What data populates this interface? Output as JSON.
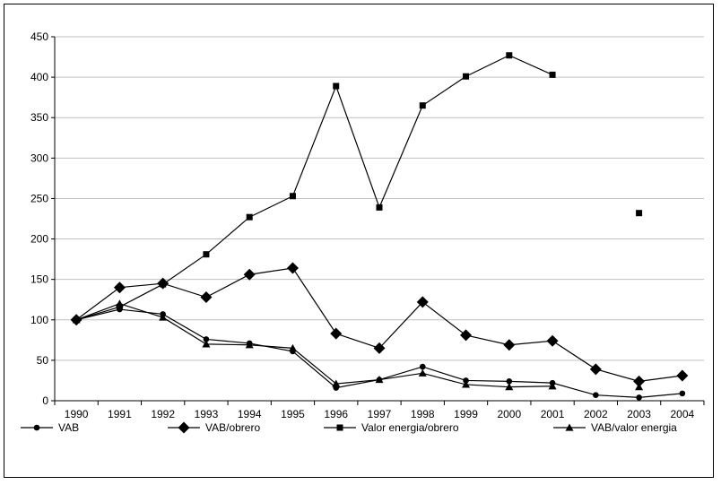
{
  "chart_data": {
    "type": "line",
    "title": "",
    "xlabel": "",
    "ylabel": "",
    "categories": [
      "1990",
      "1991",
      "1992",
      "1993",
      "1994",
      "1995",
      "1996",
      "1997",
      "1998",
      "1999",
      "2000",
      "2001",
      "2002",
      "2003",
      "2004"
    ],
    "ylim": [
      0,
      450
    ],
    "yticks": [
      "0",
      "50",
      "100",
      "150",
      "200",
      "250",
      "300",
      "350",
      "400",
      "450"
    ],
    "grid": "horizontal",
    "legend_position": "bottom",
    "series": [
      {
        "name": "VAB",
        "marker": "circle",
        "values": [
          100,
          113,
          107,
          76,
          71,
          61,
          16,
          26,
          42,
          25,
          24,
          22,
          7,
          4,
          9
        ]
      },
      {
        "name": "VAB/obrero",
        "marker": "diamond",
        "values": [
          100,
          140,
          145,
          128,
          156,
          164,
          83,
          65,
          122,
          81,
          69,
          74,
          39,
          24,
          31
        ]
      },
      {
        "name": "Valor energia/obrero",
        "marker": "square",
        "values": [
          100,
          116,
          144,
          181,
          227,
          253,
          389,
          239,
          365,
          401,
          427,
          403,
          null,
          232,
          null
        ]
      },
      {
        "name": "VAB/valor energia",
        "marker": "triangle",
        "values": [
          100,
          120,
          103,
          70,
          69,
          65,
          21,
          26,
          34,
          20,
          17,
          18,
          null,
          17,
          null
        ]
      }
    ]
  }
}
